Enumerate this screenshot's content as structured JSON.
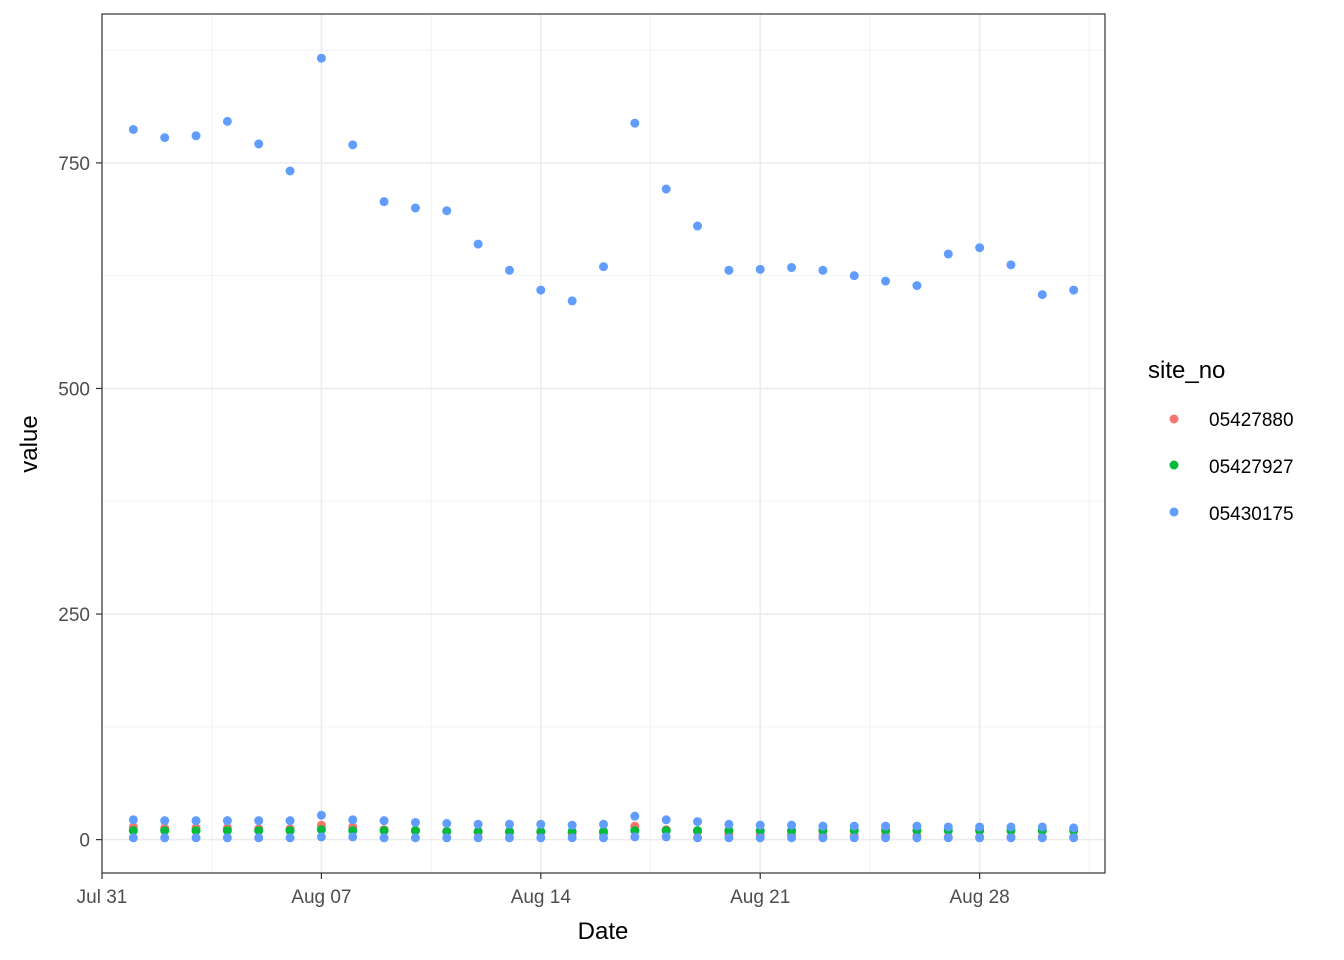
{
  "chart_data": {
    "type": "scatter",
    "title": "",
    "xlabel": "Date",
    "ylabel": "value",
    "xlim": [
      "2023-07-31",
      "2023-09-01"
    ],
    "ylim": [
      -37,
      915
    ],
    "x_ticks": [
      {
        "label": "Jul 31",
        "date": "2023-07-31"
      },
      {
        "label": "Aug 07",
        "date": "2023-08-07"
      },
      {
        "label": "Aug 14",
        "date": "2023-08-14"
      },
      {
        "label": "Aug 21",
        "date": "2023-08-21"
      },
      {
        "label": "Aug 28",
        "date": "2023-08-28"
      }
    ],
    "y_ticks": [
      {
        "label": "0",
        "value": 0
      },
      {
        "label": "250",
        "value": 250
      },
      {
        "label": "500",
        "value": 500
      },
      {
        "label": "750",
        "value": 750
      }
    ],
    "grid": true,
    "legend": {
      "title": "site_no",
      "position": "right"
    },
    "x": [
      "2023-08-01",
      "2023-08-02",
      "2023-08-03",
      "2023-08-04",
      "2023-08-05",
      "2023-08-06",
      "2023-08-07",
      "2023-08-08",
      "2023-08-09",
      "2023-08-10",
      "2023-08-11",
      "2023-08-12",
      "2023-08-13",
      "2023-08-14",
      "2023-08-15",
      "2023-08-16",
      "2023-08-17",
      "2023-08-18",
      "2023-08-19",
      "2023-08-20",
      "2023-08-21",
      "2023-08-22",
      "2023-08-23",
      "2023-08-24",
      "2023-08-25",
      "2023-08-26",
      "2023-08-27",
      "2023-08-28",
      "2023-08-29",
      "2023-08-30",
      "2023-08-31"
    ],
    "series": [
      {
        "name": "05427880",
        "color": "#F8766D",
        "values": [
          14,
          13,
          13,
          13,
          12,
          12,
          16,
          14,
          11,
          10,
          9,
          8,
          8,
          8,
          7,
          7,
          15,
          11,
          9,
          6,
          5,
          5,
          4,
          4,
          4,
          4,
          3,
          3,
          3,
          3,
          3
        ]
      },
      {
        "name": "05427927",
        "color": "#00BA38",
        "values": [
          10,
          10,
          10,
          10,
          10,
          10,
          11,
          10,
          10,
          10,
          9,
          9,
          9,
          9,
          9,
          9,
          10,
          10,
          10,
          10,
          10,
          10,
          10,
          10,
          10,
          10,
          10,
          10,
          10,
          10,
          10
        ]
      },
      {
        "name": "05430175",
        "color": "#619CFF",
        "values": [
          787,
          778,
          780,
          796,
          771,
          741,
          866,
          770,
          707,
          700,
          697,
          660,
          631,
          609,
          597,
          635,
          794,
          721,
          680,
          631,
          632,
          634,
          631,
          625,
          619,
          614,
          649,
          656,
          637,
          604,
          609
        ]
      },
      {
        "name": "05430175",
        "color": "#619CFF",
        "values": [
          22,
          21,
          21,
          21,
          21,
          21,
          27,
          22,
          21,
          19,
          18,
          17,
          17,
          17,
          16,
          17,
          26,
          22,
          20,
          17,
          16,
          16,
          15,
          15,
          15,
          15,
          14,
          14,
          14,
          14,
          13
        ]
      },
      {
        "name": "05430175",
        "color": "#619CFF",
        "values": [
          2,
          2,
          2,
          2,
          2,
          2,
          3,
          3,
          2,
          2,
          2,
          2,
          2,
          2,
          2,
          2,
          3,
          3,
          2,
          2,
          2,
          2,
          2,
          2,
          2,
          2,
          2,
          2,
          2,
          2,
          2
        ]
      }
    ]
  }
}
